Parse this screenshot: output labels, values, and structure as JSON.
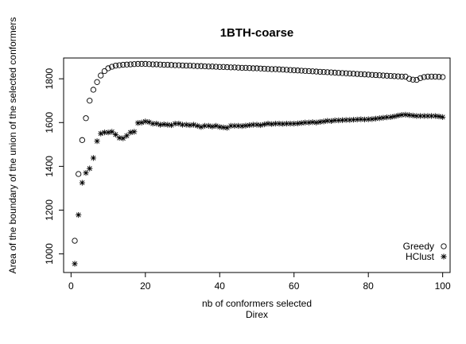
{
  "chart_data": {
    "type": "scatter",
    "title": "1BTH-coarse",
    "xlabel": "nb of conformers selected",
    "xlabel2": "Direx",
    "ylabel": "Area of the boundary of the union of the selected conformers",
    "xlim": [
      -2,
      102
    ],
    "ylim": [
      915,
      1895
    ],
    "xticks": [
      0,
      20,
      40,
      60,
      80,
      100
    ],
    "yticks": [
      1000,
      1200,
      1400,
      1600,
      1800
    ],
    "grid": false,
    "legend_position": "bottom-right",
    "series": [
      {
        "name": "Greedy",
        "marker": "circle",
        "x": [
          1,
          2,
          3,
          4,
          5,
          6,
          7,
          8,
          9,
          10,
          11,
          12,
          13,
          14,
          15,
          16,
          17,
          18,
          19,
          20,
          21,
          22,
          23,
          24,
          25,
          26,
          27,
          28,
          29,
          30,
          31,
          32,
          33,
          34,
          35,
          36,
          37,
          38,
          39,
          40,
          41,
          42,
          43,
          44,
          45,
          46,
          47,
          48,
          49,
          50,
          51,
          52,
          53,
          54,
          55,
          56,
          57,
          58,
          59,
          60,
          61,
          62,
          63,
          64,
          65,
          66,
          67,
          68,
          69,
          70,
          71,
          72,
          73,
          74,
          75,
          76,
          77,
          78,
          79,
          80,
          81,
          82,
          83,
          84,
          85,
          86,
          87,
          88,
          89,
          90,
          91,
          92,
          93,
          94,
          95,
          96,
          97,
          98,
          99,
          100
        ],
        "y": [
          1060,
          1365,
          1520,
          1620,
          1700,
          1750,
          1785,
          1815,
          1835,
          1848,
          1855,
          1860,
          1862,
          1864,
          1865,
          1866,
          1867,
          1868,
          1868,
          1868,
          1867,
          1866,
          1866,
          1865,
          1864,
          1864,
          1863,
          1862,
          1862,
          1861,
          1860,
          1860,
          1859,
          1858,
          1858,
          1857,
          1856,
          1856,
          1855,
          1854,
          1854,
          1853,
          1852,
          1852,
          1851,
          1850,
          1850,
          1849,
          1848,
          1848,
          1847,
          1846,
          1845,
          1844,
          1844,
          1843,
          1842,
          1841,
          1840,
          1839,
          1838,
          1837,
          1836,
          1835,
          1834,
          1833,
          1832,
          1831,
          1830,
          1829,
          1828,
          1827,
          1826,
          1825,
          1824,
          1823,
          1822,
          1821,
          1820,
          1819,
          1818,
          1817,
          1816,
          1815,
          1814,
          1813,
          1812,
          1811,
          1810,
          1810,
          1800,
          1796,
          1795,
          1803,
          1808,
          1810,
          1810,
          1810,
          1809,
          1808
        ]
      },
      {
        "name": "HClust",
        "marker": "asterisk",
        "x": [
          1,
          2,
          3,
          4,
          5,
          6,
          7,
          8,
          9,
          10,
          11,
          12,
          13,
          14,
          15,
          16,
          17,
          18,
          19,
          20,
          21,
          22,
          23,
          24,
          25,
          26,
          27,
          28,
          29,
          30,
          31,
          32,
          33,
          34,
          35,
          36,
          37,
          38,
          39,
          40,
          41,
          42,
          43,
          44,
          45,
          46,
          47,
          48,
          49,
          50,
          51,
          52,
          53,
          54,
          55,
          56,
          57,
          58,
          59,
          60,
          61,
          62,
          63,
          64,
          65,
          66,
          67,
          68,
          69,
          70,
          71,
          72,
          73,
          74,
          75,
          76,
          77,
          78,
          79,
          80,
          81,
          82,
          83,
          84,
          85,
          86,
          87,
          88,
          89,
          90,
          91,
          92,
          93,
          94,
          95,
          96,
          97,
          98,
          99,
          100
        ],
        "y": [
          955,
          1178,
          1325,
          1370,
          1390,
          1438,
          1515,
          1550,
          1555,
          1555,
          1558,
          1545,
          1530,
          1528,
          1540,
          1555,
          1558,
          1598,
          1600,
          1605,
          1602,
          1595,
          1595,
          1590,
          1592,
          1590,
          1588,
          1595,
          1595,
          1590,
          1590,
          1588,
          1590,
          1585,
          1580,
          1585,
          1585,
          1582,
          1585,
          1580,
          1578,
          1576,
          1585,
          1585,
          1585,
          1584,
          1586,
          1588,
          1590,
          1590,
          1588,
          1592,
          1595,
          1593,
          1595,
          1595,
          1594,
          1595,
          1595,
          1595,
          1596,
          1598,
          1600,
          1600,
          1602,
          1600,
          1603,
          1605,
          1608,
          1607,
          1610,
          1610,
          1611,
          1612,
          1612,
          1613,
          1614,
          1615,
          1614,
          1615,
          1616,
          1618,
          1620,
          1622,
          1624,
          1625,
          1628,
          1632,
          1635,
          1636,
          1634,
          1632,
          1630,
          1630,
          1630,
          1630,
          1630,
          1630,
          1628,
          1625
        ]
      }
    ]
  }
}
